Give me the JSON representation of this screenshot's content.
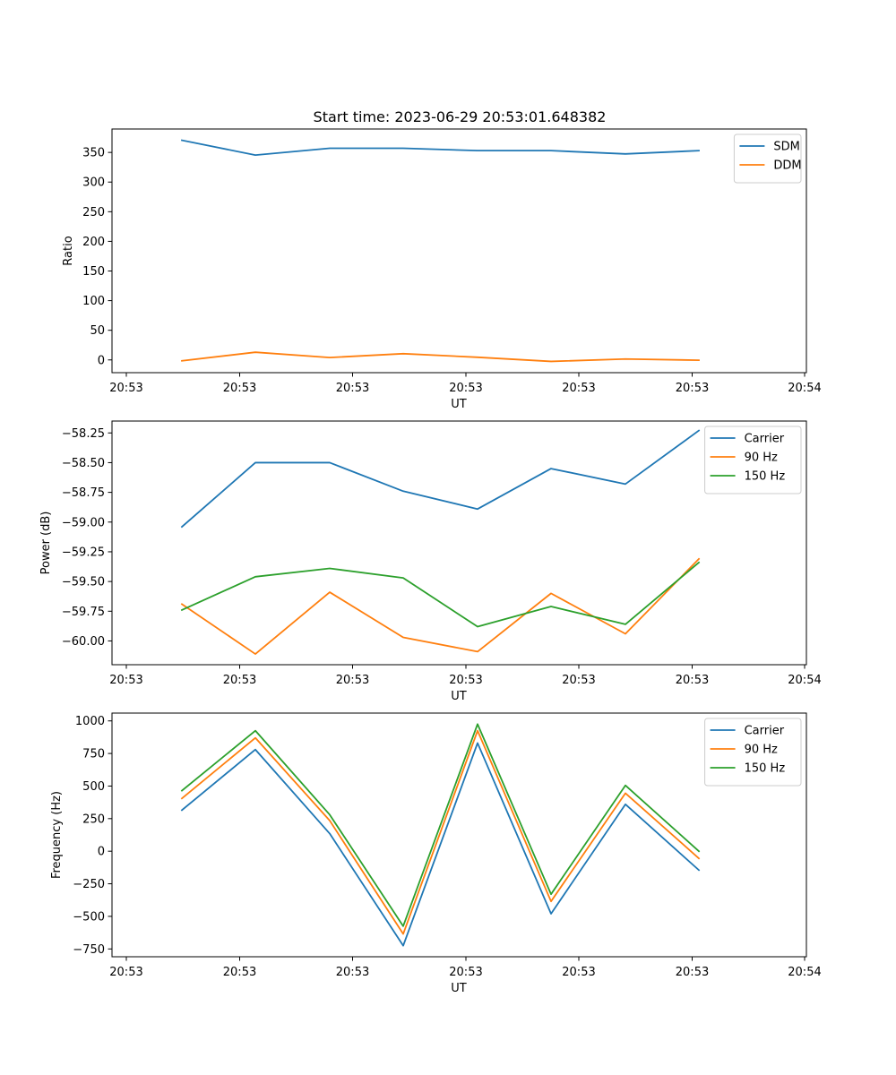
{
  "title": "Start time: 2023-06-29 20:53:01.648382",
  "colors": {
    "C0": "#1f77b4",
    "C1": "#ff7f0e",
    "C2": "#2ca02c"
  },
  "chart_data": [
    {
      "type": "line",
      "xlabel": "UT",
      "ylabel": "Ratio",
      "x_tick_labels": [
        "20:53",
        "20:53",
        "20:53",
        "20:53",
        "20:53",
        "20:53",
        "20:54"
      ],
      "y_ticks": [
        0,
        50,
        100,
        150,
        200,
        250,
        300,
        350
      ],
      "y_tick_labels": [
        "0",
        "50",
        "100",
        "150",
        "200",
        "250",
        "300",
        "350"
      ],
      "ylim": [
        -21.5,
        389.5
      ],
      "legend": "top-right",
      "series": [
        {
          "name": "SDM",
          "color": "#1f77b4",
          "values": [
            370.5,
            345.5,
            357,
            357,
            353,
            353,
            347.5,
            353
          ]
        },
        {
          "name": "DDM",
          "color": "#ff7f0e",
          "values": [
            -1.5,
            13,
            4,
            10.5,
            4.5,
            -2.5,
            1.5,
            -0.5
          ]
        }
      ]
    },
    {
      "type": "line",
      "xlabel": "UT",
      "ylabel": "Power (dB)",
      "x_tick_labels": [
        "20:53",
        "20:53",
        "20:53",
        "20:53",
        "20:53",
        "20:53",
        "20:54"
      ],
      "y_ticks": [
        -60.0,
        -59.75,
        -59.5,
        -59.25,
        -59.0,
        -58.75,
        -58.5,
        -58.25
      ],
      "y_tick_labels": [
        "−60.00",
        "−59.75",
        "−59.50",
        "−59.25",
        "−59.00",
        "−58.75",
        "−58.50",
        "−58.25"
      ],
      "ylim": [
        -60.2,
        -58.15
      ],
      "legend": "top-right",
      "series": [
        {
          "name": "Carrier",
          "color": "#1f77b4",
          "values": [
            -59.04,
            -58.5,
            -58.5,
            -58.74,
            -58.89,
            -58.55,
            -58.68,
            -58.23
          ]
        },
        {
          "name": "90 Hz",
          "color": "#ff7f0e",
          "values": [
            -59.69,
            -60.11,
            -59.59,
            -59.97,
            -60.09,
            -59.6,
            -59.94,
            -59.31
          ]
        },
        {
          "name": "150 Hz",
          "color": "#2ca02c",
          "values": [
            -59.74,
            -59.46,
            -59.39,
            -59.47,
            -59.88,
            -59.71,
            -59.86,
            -59.34
          ]
        }
      ]
    },
    {
      "type": "line",
      "xlabel": "UT",
      "ylabel": "Frequency (Hz)",
      "x_tick_labels": [
        "20:53",
        "20:53",
        "20:53",
        "20:53",
        "20:53",
        "20:53",
        "20:54"
      ],
      "y_ticks": [
        -750,
        -500,
        -250,
        0,
        250,
        500,
        750,
        1000
      ],
      "y_tick_labels": [
        "−750",
        "−500",
        "−250",
        "0",
        "250",
        "500",
        "750",
        "1000"
      ],
      "ylim": [
        -810,
        1060
      ],
      "legend": "top-right",
      "series": [
        {
          "name": "Carrier",
          "color": "#1f77b4",
          "values": [
            315,
            780,
            135,
            -725,
            830,
            -480,
            360,
            -145
          ]
        },
        {
          "name": "90 Hz",
          "color": "#ff7f0e",
          "values": [
            405,
            870,
            235,
            -635,
            925,
            -385,
            445,
            -55
          ]
        },
        {
          "name": "150 Hz",
          "color": "#2ca02c",
          "values": [
            465,
            925,
            280,
            -575,
            975,
            -330,
            505,
            0
          ]
        }
      ]
    }
  ]
}
